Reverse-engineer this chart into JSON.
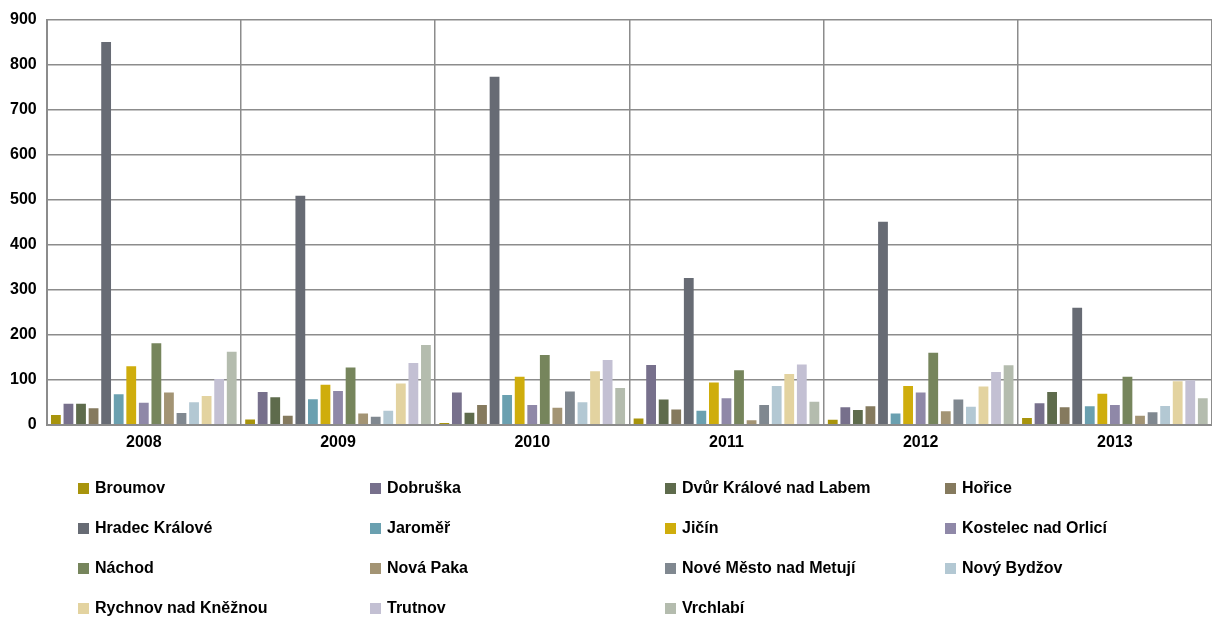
{
  "chart_data": {
    "type": "bar",
    "categories": [
      "2008",
      "2009",
      "2010",
      "2011",
      "2012",
      "2013"
    ],
    "ylim": [
      0,
      900
    ],
    "yticks": [
      0,
      100,
      200,
      300,
      400,
      500,
      600,
      700,
      800,
      900
    ],
    "grid": true,
    "legend": "bottom",
    "series": [
      {
        "name": "Broumov",
        "color": "#a8940c",
        "values": [
          22,
          12,
          4,
          14,
          11,
          15
        ]
      },
      {
        "name": "Dobruška",
        "color": "#77708c",
        "values": [
          47,
          73,
          72,
          133,
          39,
          48
        ]
      },
      {
        "name": "Dvůr Králové nad Labem",
        "color": "#5e6b4c",
        "values": [
          47,
          61,
          27,
          56,
          33,
          73
        ]
      },
      {
        "name": "Hořice",
        "color": "#857a5e",
        "values": [
          37,
          20,
          44,
          34,
          41,
          39
        ]
      },
      {
        "name": "Hradec Králové",
        "color": "#676b74",
        "values": [
          850,
          509,
          773,
          326,
          451,
          260
        ]
      },
      {
        "name": "Jaroměř",
        "color": "#6aa0b0",
        "values": [
          68,
          57,
          66,
          31,
          25,
          41
        ]
      },
      {
        "name": "Jičín",
        "color": "#cfad0c",
        "values": [
          130,
          89,
          107,
          94,
          86,
          69
        ]
      },
      {
        "name": "Kostelec nad Orlicí",
        "color": "#8f88a8",
        "values": [
          49,
          75,
          44,
          59,
          72,
          44
        ]
      },
      {
        "name": "Náchod",
        "color": "#76855c",
        "values": [
          181,
          127,
          155,
          121,
          160,
          107
        ]
      },
      {
        "name": "Nová Paka",
        "color": "#a39474",
        "values": [
          72,
          25,
          38,
          10,
          30,
          20
        ]
      },
      {
        "name": "Nové Město nad Metují",
        "color": "#808890",
        "values": [
          26,
          18,
          74,
          44,
          56,
          28
        ]
      },
      {
        "name": "Nový Bydžov",
        "color": "#b3c8d3",
        "values": [
          50,
          31,
          50,
          86,
          40,
          42
        ]
      },
      {
        "name": "Rychnov nad Kněžnou",
        "color": "#e3d3a0",
        "values": [
          64,
          92,
          119,
          113,
          85,
          97
        ]
      },
      {
        "name": "Trutnov",
        "color": "#c3c0d3",
        "values": [
          102,
          137,
          144,
          134,
          117,
          99
        ]
      },
      {
        "name": "Vrchlabí",
        "color": "#b4bcae",
        "values": [
          162,
          177,
          82,
          51,
          132,
          59
        ]
      }
    ]
  }
}
